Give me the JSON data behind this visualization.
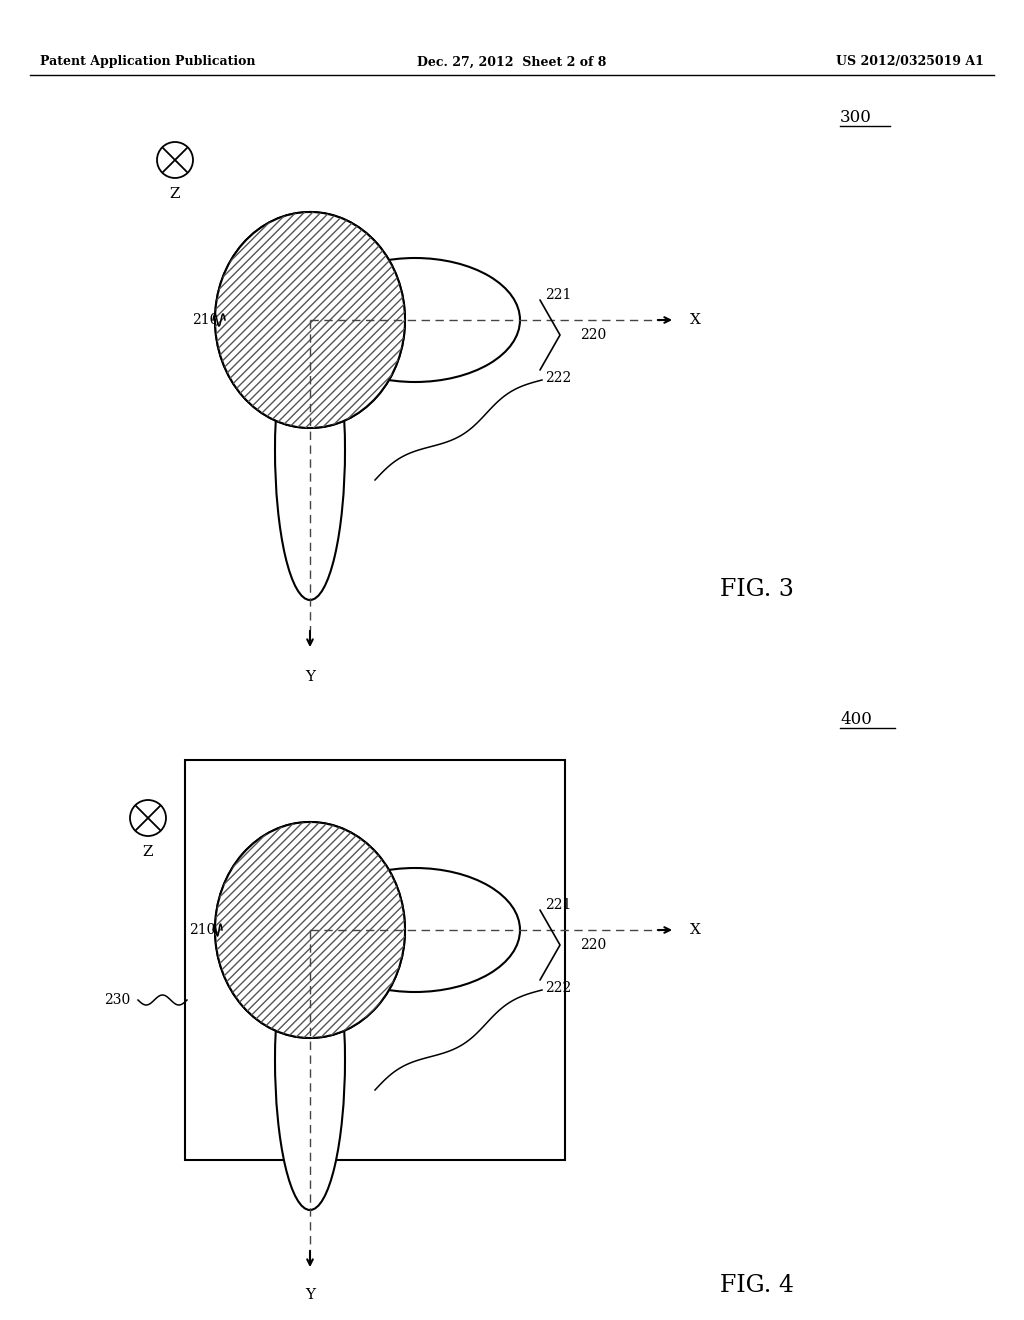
{
  "bg_color": "#ffffff",
  "header_left": "Patent Application Publication",
  "header_center": "Dec. 27, 2012  Sheet 2 of 8",
  "header_right": "US 2012/0325019 A1",
  "fig3_label": "300",
  "fig3_caption": "FIG. 3",
  "fig4_label": "400",
  "fig4_caption": "FIG. 4",
  "font_size_labels": 10,
  "font_size_header": 9,
  "font_size_axis": 11,
  "font_size_ref": 12,
  "font_size_figcap": 17
}
